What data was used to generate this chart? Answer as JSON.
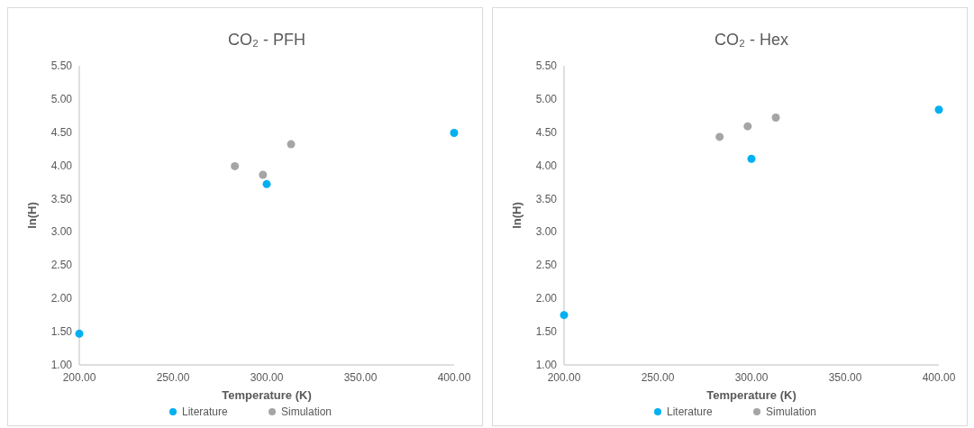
{
  "chart_data": [
    {
      "type": "scatter",
      "title": "CO₂ - PFH",
      "xlabel": "Temperature (K)",
      "ylabel": "ln(H)",
      "xlim": [
        200,
        400
      ],
      "ylim": [
        1,
        5.5
      ],
      "xticks": [
        {
          "value": 200,
          "label": "200.00"
        },
        {
          "value": 250,
          "label": "250.00"
        },
        {
          "value": 300,
          "label": "300.00"
        },
        {
          "value": 350,
          "label": "350.00"
        },
        {
          "value": 400,
          "label": "400.00"
        }
      ],
      "yticks": [
        {
          "value": 1,
          "label": "1.00"
        },
        {
          "value": 1.5,
          "label": "1.50"
        },
        {
          "value": 2,
          "label": "2.00"
        },
        {
          "value": 2.5,
          "label": "2.50"
        },
        {
          "value": 3,
          "label": "3.00"
        },
        {
          "value": 3.5,
          "label": "3.50"
        },
        {
          "value": 4,
          "label": "4.00"
        },
        {
          "value": 4.5,
          "label": "4.50"
        },
        {
          "value": 5,
          "label": "5.00"
        },
        {
          "value": 5.5,
          "label": "5.50"
        }
      ],
      "grid": false,
      "legend": "bottom",
      "marker": "circle",
      "series": [
        {
          "name": "Literature",
          "color": "#00b0f0",
          "x": [
            200,
            300,
            400
          ],
          "values": [
            1.47,
            3.72,
            4.49
          ]
        },
        {
          "name": "Simulation",
          "color": "#a5a5a5",
          "x": [
            283,
            298,
            313
          ],
          "values": [
            3.99,
            3.86,
            4.32
          ]
        }
      ]
    },
    {
      "type": "scatter",
      "title": "CO₂ - Hex",
      "xlabel": "Temperature (K)",
      "ylabel": "ln(H)",
      "xlim": [
        200,
        400
      ],
      "ylim": [
        1,
        5.5
      ],
      "xticks": [
        {
          "value": 200,
          "label": "200.00"
        },
        {
          "value": 250,
          "label": "250.00"
        },
        {
          "value": 300,
          "label": "300.00"
        },
        {
          "value": 350,
          "label": "350.00"
        },
        {
          "value": 400,
          "label": "400.00"
        }
      ],
      "yticks": [
        {
          "value": 1,
          "label": "1.00"
        },
        {
          "value": 1.5,
          "label": "1.50"
        },
        {
          "value": 2,
          "label": "2.00"
        },
        {
          "value": 2.5,
          "label": "2.50"
        },
        {
          "value": 3,
          "label": "3.00"
        },
        {
          "value": 3.5,
          "label": "3.50"
        },
        {
          "value": 4,
          "label": "4.00"
        },
        {
          "value": 4.5,
          "label": "4.50"
        },
        {
          "value": 5,
          "label": "5.00"
        },
        {
          "value": 5.5,
          "label": "5.50"
        }
      ],
      "grid": false,
      "legend": "bottom",
      "marker": "circle",
      "series": [
        {
          "name": "Literature",
          "color": "#00b0f0",
          "x": [
            200,
            300,
            400
          ],
          "values": [
            1.75,
            4.1,
            4.84
          ]
        },
        {
          "name": "Simulation",
          "color": "#a5a5a5",
          "x": [
            283,
            298,
            313
          ],
          "values": [
            4.43,
            4.59,
            4.72
          ]
        }
      ]
    }
  ]
}
